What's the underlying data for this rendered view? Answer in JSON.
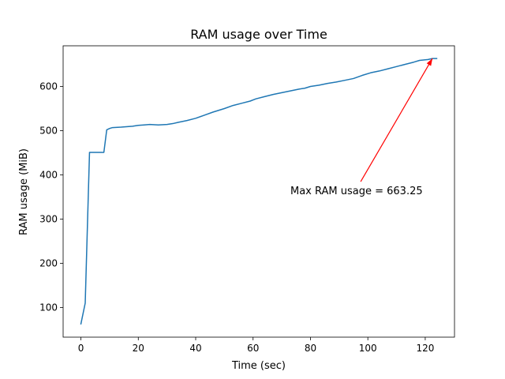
{
  "chart_data": {
    "type": "line",
    "title": "RAM usage over Time",
    "xlabel": "Time (sec)",
    "ylabel": "RAM usage (MiB)",
    "xlim": [
      -6.2,
      130.2
    ],
    "ylim": [
      33,
      692
    ],
    "xticks": [
      0,
      20,
      40,
      60,
      80,
      100,
      120
    ],
    "yticks": [
      100,
      200,
      300,
      400,
      500,
      600
    ],
    "grid": false,
    "series": [
      {
        "color": "#1f77b4",
        "points": [
          [
            0,
            63
          ],
          [
            1.5,
            110
          ],
          [
            3,
            451
          ],
          [
            4,
            451
          ],
          [
            8,
            451
          ],
          [
            9,
            502
          ],
          [
            10,
            505
          ],
          [
            11,
            507
          ],
          [
            14,
            508
          ],
          [
            18,
            510
          ],
          [
            20,
            512
          ],
          [
            22,
            513
          ],
          [
            24,
            514
          ],
          [
            27,
            513
          ],
          [
            30,
            514
          ],
          [
            32,
            516
          ],
          [
            34,
            519
          ],
          [
            37,
            523
          ],
          [
            40,
            528
          ],
          [
            43,
            535
          ],
          [
            46,
            542
          ],
          [
            50,
            550
          ],
          [
            53,
            557
          ],
          [
            56,
            562
          ],
          [
            59,
            567
          ],
          [
            61,
            572
          ],
          [
            64,
            577
          ],
          [
            67,
            582
          ],
          [
            70,
            586
          ],
          [
            73,
            590
          ],
          [
            76,
            594
          ],
          [
            78,
            596
          ],
          [
            80,
            600
          ],
          [
            83,
            603
          ],
          [
            86,
            607
          ],
          [
            89,
            610
          ],
          [
            92,
            614
          ],
          [
            95,
            618
          ],
          [
            98,
            625
          ],
          [
            101,
            631
          ],
          [
            104,
            635
          ],
          [
            107,
            640
          ],
          [
            110,
            645
          ],
          [
            113,
            650
          ],
          [
            116,
            655
          ],
          [
            118,
            659
          ],
          [
            121,
            661
          ],
          [
            122.5,
            663.25
          ],
          [
            124,
            663.25
          ]
        ]
      }
    ],
    "annotation": {
      "text": "Max RAM usage = 663.25",
      "color": "#ff0000",
      "xy": [
        122.5,
        663.25
      ],
      "xytext": [
        73,
        365
      ]
    }
  }
}
